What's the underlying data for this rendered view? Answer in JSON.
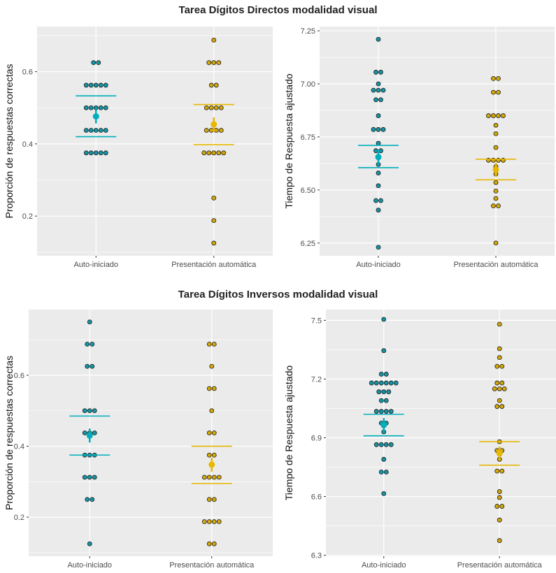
{
  "titles": {
    "top": "Tarea Dígitos Directos modalidad visual",
    "bottom": "Tarea Dígitos Inversos modalidad visual"
  },
  "colors": {
    "auto": "#00AFBB",
    "auto_point": "#1495A6",
    "presentacion": "#E7B800",
    "presentacion_point": "#D4A80A",
    "panel_bg": "#EBEBEB",
    "grid": "#FFFFFF"
  },
  "chart_data": [
    {
      "type": "scatter",
      "title": "",
      "ylabel": "Proporción de respuestas correctas",
      "xlabel": "",
      "categories": [
        "Auto-iniciado",
        "Presentación automática"
      ],
      "ylim": [
        0.09,
        0.725
      ],
      "yticks": [
        0.2,
        0.4,
        0.6
      ],
      "ytick_labels": [
        "0.2",
        "0.4",
        "0.6"
      ],
      "grid": true,
      "series": [
        {
          "values": [
            0.625,
            0.625,
            0.5625,
            0.5625,
            0.5625,
            0.5625,
            0.5625,
            0.5,
            0.5,
            0.5,
            0.5,
            0.5,
            0.4375,
            0.4375,
            0.4375,
            0.4375,
            0.4375,
            0.375,
            0.375,
            0.375,
            0.375,
            0.375
          ],
          "mean": 0.476,
          "ci": [
            0.42,
            0.533
          ]
        },
        {
          "values": [
            0.6875,
            0.625,
            0.625,
            0.625,
            0.5625,
            0.5625,
            0.5,
            0.5,
            0.5,
            0.5,
            0.4375,
            0.4375,
            0.4375,
            0.4375,
            0.375,
            0.375,
            0.375,
            0.375,
            0.375,
            0.25,
            0.1875,
            0.125
          ],
          "mean": 0.454,
          "ci": [
            0.398,
            0.509
          ]
        }
      ]
    },
    {
      "type": "scatter",
      "title": "",
      "ylabel": "Tiempo de Respuesta ajustado",
      "xlabel": "",
      "categories": [
        "Auto-iniciado",
        "Presentación automática"
      ],
      "ylim": [
        6.19,
        7.27
      ],
      "yticks": [
        6.25,
        6.5,
        6.75,
        7.0,
        7.25
      ],
      "ytick_labels": [
        "6.25",
        "6.50",
        "6.75",
        "7.00",
        "7.25"
      ],
      "grid": true,
      "series": [
        {
          "values": [
            7.21,
            7.055,
            7.055,
            7.0,
            6.97,
            6.97,
            6.97,
            6.925,
            6.925,
            6.85,
            6.785,
            6.785,
            6.785,
            6.72,
            6.685,
            6.685,
            6.62,
            6.58,
            6.52,
            6.45,
            6.45,
            6.405,
            6.23
          ],
          "mean": 6.655,
          "ci": [
            6.605,
            6.71
          ]
        },
        {
          "values": [
            7.025,
            7.025,
            6.96,
            6.96,
            6.85,
            6.85,
            6.85,
            6.85,
            6.805,
            6.765,
            6.7,
            6.64,
            6.64,
            6.64,
            6.64,
            6.61,
            6.595,
            6.575,
            6.535,
            6.495,
            6.46,
            6.425,
            6.425,
            6.25
          ],
          "mean": 6.595,
          "ci": [
            6.548,
            6.645
          ]
        }
      ]
    },
    {
      "type": "scatter",
      "title": "",
      "ylabel": "Proporción de respuestas correctas",
      "xlabel": "",
      "categories": [
        "Auto-iniciado",
        "Presentación automática"
      ],
      "ylim": [
        0.09,
        0.785
      ],
      "yticks": [
        0.2,
        0.4,
        0.6
      ],
      "ytick_labels": [
        "0.2",
        "0.4",
        "0.6"
      ],
      "grid": true,
      "series": [
        {
          "values": [
            0.75,
            0.6875,
            0.6875,
            0.625,
            0.625,
            0.5,
            0.5,
            0.5,
            0.4375,
            0.4375,
            0.4375,
            0.375,
            0.375,
            0.375,
            0.3125,
            0.3125,
            0.3125,
            0.25,
            0.25,
            0.125
          ],
          "mean": 0.43,
          "ci": [
            0.375,
            0.485
          ]
        },
        {
          "values": [
            0.6875,
            0.6875,
            0.625,
            0.5625,
            0.5625,
            0.5,
            0.4375,
            0.4375,
            0.375,
            0.375,
            0.3125,
            0.3125,
            0.3125,
            0.3125,
            0.25,
            0.25,
            0.1875,
            0.1875,
            0.1875,
            0.1875,
            0.125,
            0.125
          ],
          "mean": 0.348,
          "ci": [
            0.295,
            0.4
          ]
        }
      ]
    },
    {
      "type": "scatter",
      "title": "",
      "ylabel": "Tiempo de Respuesta ajustado",
      "xlabel": "",
      "categories": [
        "Auto-iniciado",
        "Presentación automática"
      ],
      "ylim": [
        6.295,
        7.555
      ],
      "yticks": [
        6.3,
        6.6,
        6.9,
        7.2,
        7.5
      ],
      "ytick_labels": [
        "6.3",
        "6.6",
        "6.9",
        "7.2",
        "7.5"
      ],
      "grid": true,
      "series": [
        {
          "values": [
            7.505,
            7.345,
            7.225,
            7.225,
            7.18,
            7.18,
            7.18,
            7.18,
            7.18,
            7.18,
            7.135,
            7.135,
            7.135,
            7.09,
            7.09,
            7.035,
            7.035,
            7.035,
            7.035,
            6.975,
            6.975,
            6.93,
            6.865,
            6.865,
            6.865,
            6.865,
            6.79,
            6.725,
            6.725,
            6.615
          ],
          "mean": 6.965,
          "ci": [
            6.91,
            7.02
          ]
        },
        {
          "values": [
            7.48,
            7.355,
            7.31,
            7.265,
            7.265,
            7.18,
            7.18,
            7.15,
            7.15,
            7.15,
            7.09,
            7.06,
            7.06,
            6.88,
            6.835,
            6.835,
            6.79,
            6.73,
            6.73,
            6.625,
            6.595,
            6.55,
            6.55,
            6.48,
            6.375
          ],
          "mean": 6.82,
          "ci": [
            6.76,
            6.88
          ]
        }
      ]
    }
  ]
}
